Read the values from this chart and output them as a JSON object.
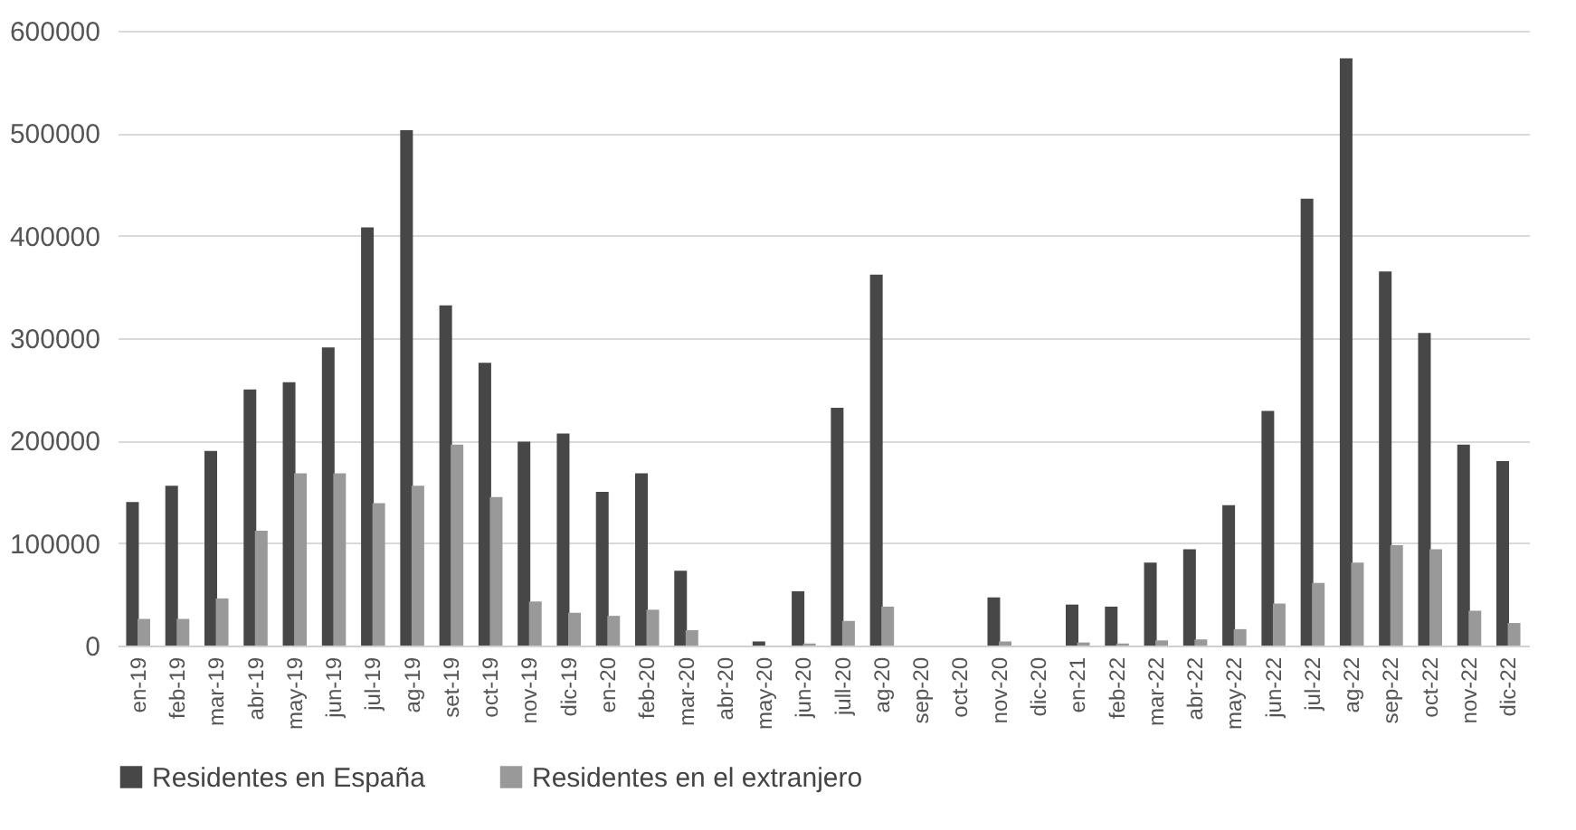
{
  "chart_data": {
    "type": "bar",
    "categories": [
      "en-19",
      "feb-19",
      "mar-19",
      "abr-19",
      "may-19",
      "jun-19",
      "jul-19",
      "ag-19",
      "set-19",
      "oct-19",
      "nov-19",
      "dic-19",
      "en-20",
      "feb-20",
      "mar-20",
      "abr-20",
      "may-20",
      "jun-20",
      "jull-20",
      "ag-20",
      "sep-20",
      "oct-20",
      "nov-20",
      "dic-20",
      "en-21",
      "feb-22",
      "mar-22",
      "abr-22",
      "may-22",
      "jun-22",
      "jul-22",
      "ag-22",
      "sep-22",
      "oct-22",
      "nov-22",
      "dic-22"
    ],
    "series": [
      {
        "name": "Residentes en España",
        "color": "#474747",
        "values": [
          140000,
          156000,
          190000,
          250000,
          257000,
          291000,
          408000,
          503000,
          332000,
          276000,
          199000,
          207000,
          150000,
          168000,
          73000,
          0,
          4000,
          53000,
          232000,
          362000,
          0,
          0,
          47000,
          0,
          40000,
          38000,
          81000,
          94000,
          137000,
          229000,
          436000,
          573000,
          365000,
          305000,
          196000,
          180000
        ]
      },
      {
        "name": "Residentes en el extranjero",
        "color": "#999999",
        "values": [
          26000,
          26000,
          46000,
          112000,
          168000,
          168000,
          139000,
          156000,
          196000,
          145000,
          43000,
          32000,
          29000,
          35000,
          15000,
          0,
          0,
          2000,
          24000,
          38000,
          0,
          0,
          4000,
          0,
          3000,
          2000,
          5000,
          6000,
          16000,
          41000,
          61000,
          81000,
          98000,
          94000,
          34000,
          22000
        ]
      }
    ],
    "ylim": [
      0,
      600000
    ],
    "yticks": [
      0,
      100000,
      200000,
      300000,
      400000,
      500000,
      600000
    ],
    "grid": "y",
    "legend": "bottom"
  }
}
